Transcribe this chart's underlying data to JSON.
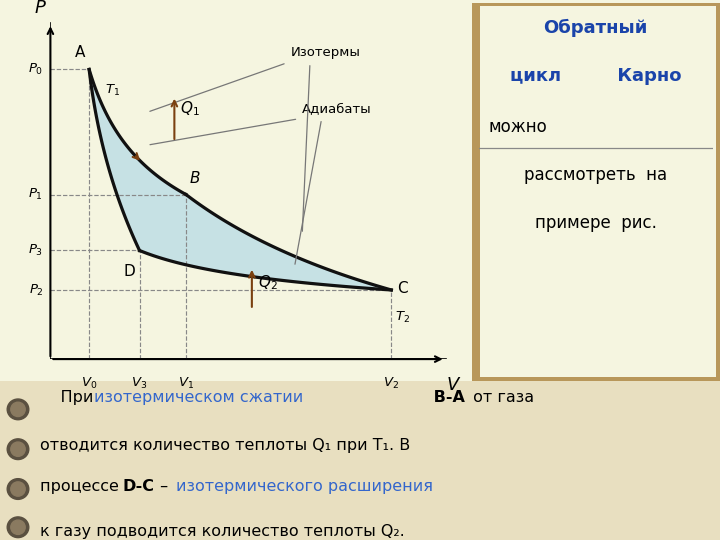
{
  "bg_color_cream": "#f5f5e0",
  "bg_color_tan": "#b8975a",
  "bg_color_notebook": "#e8dfc0",
  "right_panel_bg": "#f5f5e0",
  "plot_bg": "#f5f5e0",
  "curve_color": "#111111",
  "fill_color": "#a8d4e8",
  "fill_alpha": 0.6,
  "dashed_color": "#888888",
  "arrow_color": "#7a4010",
  "label_color": "#666666",
  "blue_text": "#3366cc",
  "points": {
    "A": [
      1.0,
      8.8
    ],
    "B": [
      3.5,
      5.0
    ],
    "C": [
      8.8,
      2.1
    ],
    "D": [
      2.3,
      3.3
    ]
  },
  "xlim": [
    0,
    10.5
  ],
  "ylim": [
    0,
    10.5
  ]
}
